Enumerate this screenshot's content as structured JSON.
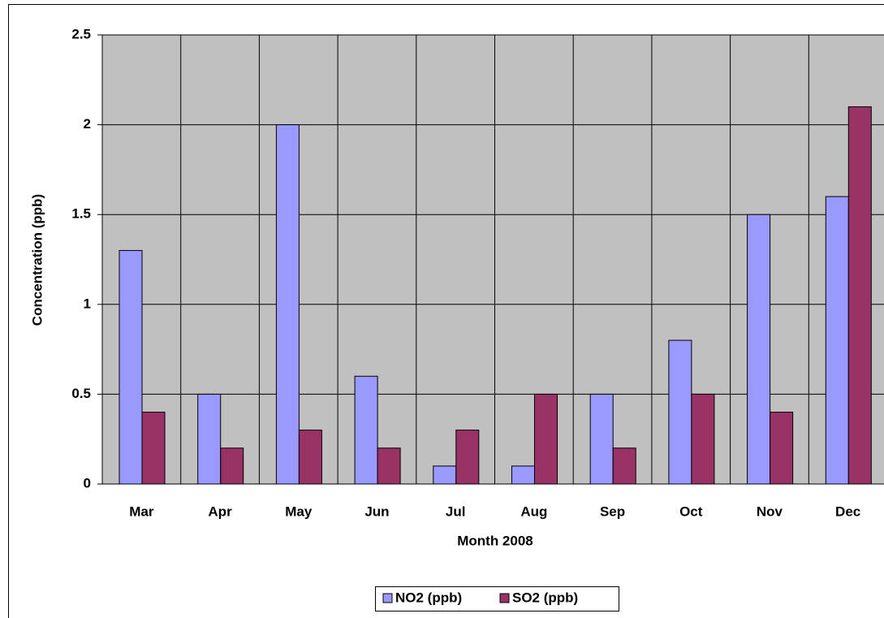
{
  "chart_data": {
    "type": "bar",
    "x_label": "Month 2008",
    "y_label": "Concentration (ppb)",
    "categories": [
      "Mar",
      "Apr",
      "May",
      "Jun",
      "Jul",
      "Aug",
      "Sep",
      "Oct",
      "Nov",
      "Dec"
    ],
    "series": [
      {
        "name": "NO2 (ppb)",
        "color": "#9999ff",
        "values": [
          1.3,
          0.5,
          2.0,
          0.6,
          0.1,
          0.1,
          0.5,
          0.8,
          1.5,
          1.6
        ]
      },
      {
        "name": "SO2 (ppb)",
        "color": "#993366",
        "values": [
          0.4,
          0.2,
          0.3,
          0.2,
          0.3,
          0.5,
          0.2,
          0.5,
          0.4,
          2.1
        ]
      }
    ],
    "ylim": [
      0,
      2.5
    ],
    "yticks": [
      0,
      0.5,
      1,
      1.5,
      2,
      2.5
    ],
    "grid": true,
    "legend": "bottom"
  }
}
